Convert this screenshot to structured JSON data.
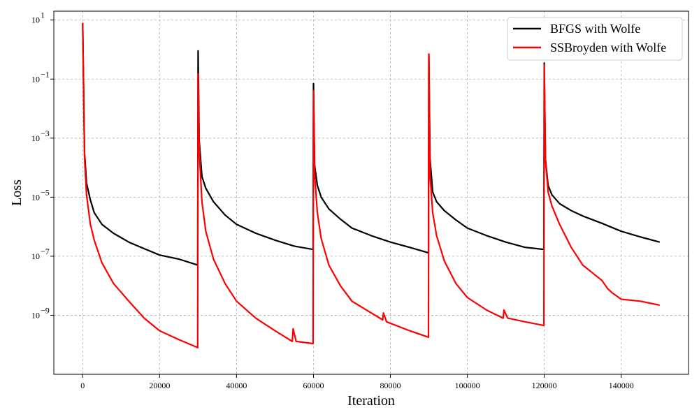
{
  "chart_data": {
    "type": "line",
    "xlabel": "Iteration",
    "ylabel": "Loss",
    "yscale": "log",
    "xlim": [
      -7500,
      157500
    ],
    "ylim": [
      1e-11,
      20
    ],
    "xticks": [
      0,
      20000,
      40000,
      60000,
      80000,
      100000,
      120000,
      140000
    ],
    "xtick_labels": [
      "0",
      "20000",
      "40000",
      "60000",
      "80000",
      "100000",
      "120000",
      "140000"
    ],
    "yticks": [
      10,
      0.1,
      0.001,
      1e-05,
      1e-07,
      1e-09
    ],
    "ytick_labels": [
      {
        "base": "10",
        "exp": "1"
      },
      {
        "base": "10",
        "exp": "−1"
      },
      {
        "base": "10",
        "exp": "−3"
      },
      {
        "base": "10",
        "exp": "−5"
      },
      {
        "base": "10",
        "exp": "−7"
      },
      {
        "base": "10",
        "exp": "−9"
      }
    ],
    "grid": true,
    "legend_position": "top-right",
    "series": [
      {
        "name": "BFGS with Wolfe",
        "color": "#000000",
        "x": [
          0,
          200,
          500,
          1000,
          2000,
          3000,
          5000,
          8000,
          12000,
          16000,
          20000,
          25000,
          29900,
          30000,
          30300,
          31000,
          32000,
          34000,
          37000,
          40000,
          45000,
          50000,
          55000,
          59900,
          60000,
          60300,
          61000,
          62000,
          64000,
          67000,
          70000,
          75000,
          80000,
          85000,
          89900,
          90000,
          90300,
          91000,
          92000,
          94000,
          97000,
          100000,
          105000,
          110000,
          115000,
          119900,
          120000,
          120300,
          121000,
          122000,
          124000,
          127000,
          130000,
          135000,
          140000,
          145000,
          150000
        ],
        "y": [
          8,
          0.1,
          0.0003,
          3e-05,
          8e-06,
          3e-06,
          1.2e-06,
          6e-07,
          3e-07,
          1.8e-07,
          1.1e-07,
          8e-08,
          5e-08,
          0.9,
          0.0008,
          5e-05,
          2e-05,
          7e-06,
          2.5e-06,
          1.2e-06,
          6e-07,
          3.5e-07,
          2.2e-07,
          1.7e-07,
          0.07,
          0.00012,
          2.5e-05,
          1e-05,
          4e-06,
          1.8e-06,
          9e-07,
          5e-07,
          3e-07,
          2e-07,
          1.3e-07,
          0.7,
          0.0002,
          1.5e-05,
          7e-06,
          3.5e-06,
          1.7e-06,
          9e-07,
          5e-07,
          3e-07,
          2e-07,
          1.7e-07,
          0.35,
          0.0002,
          2.5e-05,
          1.2e-05,
          6e-06,
          3.5e-06,
          2.3e-06,
          1.3e-06,
          7e-07,
          4.5e-07,
          3e-07
        ]
      },
      {
        "name": "SSBroyden with Wolfe",
        "color": "#ff0000",
        "x": [
          0,
          200,
          500,
          1000,
          2000,
          3000,
          5000,
          8000,
          12000,
          16000,
          20000,
          25000,
          29900,
          30000,
          30300,
          31000,
          32000,
          34000,
          37000,
          40000,
          45000,
          50000,
          54500,
          54700,
          55500,
          59900,
          60000,
          60300,
          61000,
          62000,
          64000,
          67000,
          70000,
          75000,
          78000,
          78200,
          79000,
          85000,
          89900,
          90000,
          90300,
          91000,
          92000,
          94000,
          97000,
          100000,
          105000,
          109300,
          109500,
          110500,
          115000,
          119900,
          120000,
          120300,
          121000,
          122000,
          124000,
          127000,
          130000,
          135000,
          136500,
          137500,
          140000,
          145000,
          150000
        ],
        "y": [
          8,
          0.1,
          0.0002,
          1.2e-05,
          1.2e-06,
          3.5e-07,
          6e-08,
          1.2e-08,
          3e-09,
          8e-10,
          3e-10,
          1.5e-10,
          8e-11,
          0.15,
          0.0004,
          7e-06,
          7e-07,
          8e-08,
          1.2e-08,
          3e-09,
          8e-10,
          3e-10,
          1.3e-10,
          3.5e-10,
          1.3e-10,
          1.1e-10,
          0.04,
          6e-05,
          3e-06,
          4e-07,
          5e-08,
          1e-08,
          3e-09,
          1.2e-09,
          7e-10,
          1.2e-09,
          6e-10,
          3e-10,
          1.8e-10,
          0.7,
          6e-05,
          3e-06,
          5e-07,
          7e-08,
          1.2e-08,
          4e-09,
          1.5e-09,
          8e-10,
          1.5e-09,
          8e-10,
          6e-10,
          4.5e-10,
          0.3,
          0.0002,
          1.5e-05,
          5e-06,
          1.2e-06,
          2e-07,
          5e-08,
          1.5e-08,
          8e-09,
          6e-09,
          3.5e-09,
          3e-09,
          2.2e-09
        ]
      }
    ]
  }
}
